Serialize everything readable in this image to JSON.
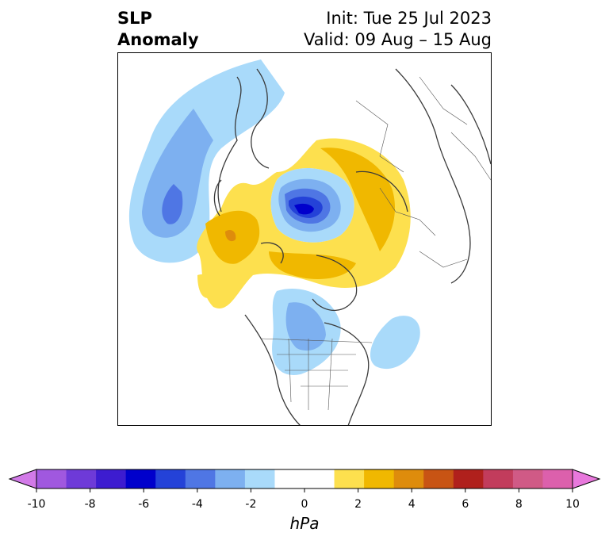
{
  "title": {
    "left_line1": "SLP",
    "left_line2": "Anomaly",
    "right_line1": "Init: Tue 25 Jul 2023",
    "right_line2": "Valid: 09 Aug – 15 Aug"
  },
  "colorbar": {
    "unit": "hPa",
    "tick_labels": [
      "-10",
      "-8",
      "-6",
      "-4",
      "-2",
      "0",
      "2",
      "4",
      "6",
      "8",
      "10"
    ],
    "colors": [
      "#d27ae8",
      "#a058df",
      "#6e3ad8",
      "#3d1cd0",
      "#0000cc",
      "#2442d8",
      "#4f76e4",
      "#7db0f0",
      "#a9dafa",
      "#ffffff",
      "#ffffff",
      "#fde04e",
      "#f0b800",
      "#de8c0c",
      "#c85414",
      "#b0201c",
      "#c23c5c",
      "#d05a86",
      "#dc60ac",
      "#e878dc"
    ]
  }
}
